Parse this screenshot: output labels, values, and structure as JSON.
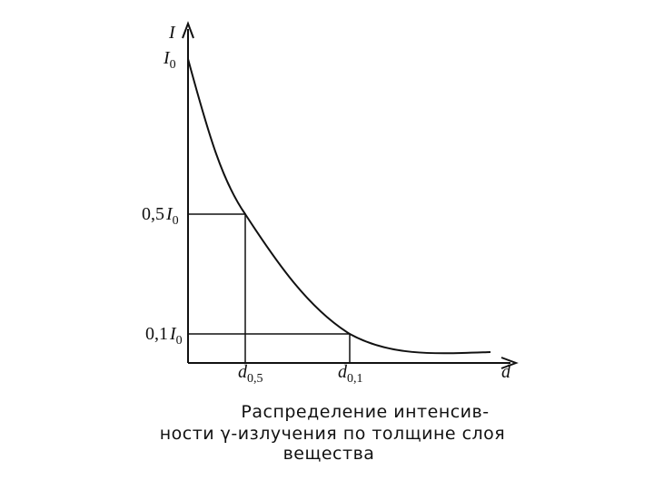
{
  "y_axis": {
    "label": "I",
    "ticks": [
      {
        "main": "I",
        "sub": "0"
      },
      {
        "coef": "0,5",
        "main": "I",
        "sub": "0"
      },
      {
        "coef": "0,1",
        "main": "I",
        "sub": "0"
      }
    ]
  },
  "x_axis": {
    "label": "d",
    "ticks": [
      {
        "main": "d",
        "sub": "0,5"
      },
      {
        "main": "d",
        "sub": "0,1"
      }
    ]
  },
  "caption": [
    "Распределение интенсив-",
    "ности γ-излучения по толщине слоя",
    "вещества"
  ]
}
